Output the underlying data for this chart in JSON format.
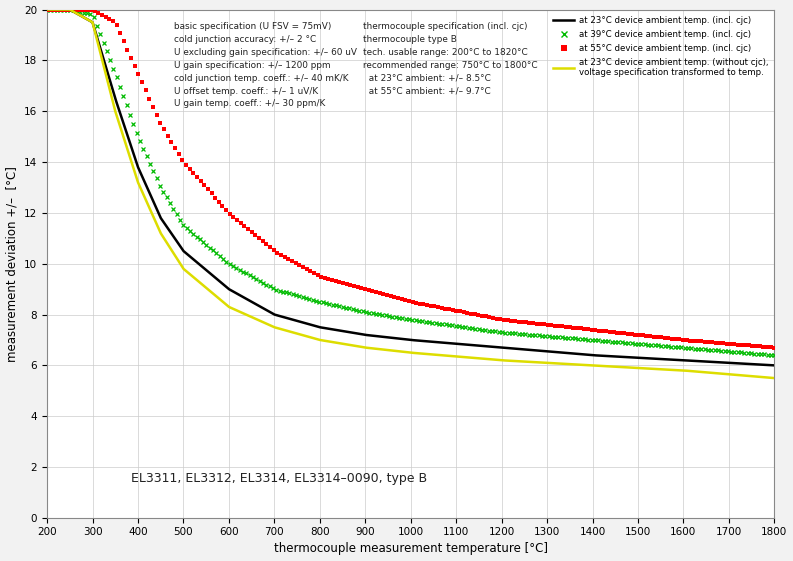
{
  "title": "",
  "xlabel": "thermocouple measurement temperature [°C]",
  "ylabel": "measurement deviation +/–  [°C]",
  "xlim": [
    200,
    1800
  ],
  "ylim": [
    0,
    20
  ],
  "xticks": [
    200,
    300,
    400,
    500,
    600,
    700,
    800,
    900,
    1000,
    1100,
    1200,
    1300,
    1400,
    1500,
    1600,
    1700,
    1800
  ],
  "yticks": [
    0,
    2,
    4,
    6,
    8,
    10,
    12,
    14,
    16,
    18,
    20
  ],
  "annotation_bottom": "EL3311, EL3312, EL3314, EL3314–0090, type B",
  "annotation_text1": "basic specification (U FSV = 75mV)\ncold junction accuracy: +/– 2 °C\nU excluding gain specification: +/– 60 uV\nU gain specification: +/– 1200 ppm\ncold junction temp. coeff.: +/– 40 mK/K\nU offset temp. coeff.: +/– 1 uV/K\nU gain temp. coeff.: +/– 30 ppm/K",
  "annotation_text2": "thermocouple specification (incl. cjc)\nthermocouple type B\ntech. usable range: 200°C to 1820°C\nrecommended range: 750°C to 1800°C\n  at 23°C ambient: +/– 8.5°C\n  at 55°C ambient: +/– 9.7°C",
  "legend_label0": "at 23°C device ambient temp. (incl. cjc)",
  "legend_label1": "at 39°C device ambient temp. (incl. cjc)",
  "legend_label2": "at 55°C device ambient temp. (incl. cjc)",
  "legend_label3a": "at 23°C device ambient temp. (without cjc),",
  "legend_label3b": "voltage specification transformed to temp.",
  "background_color": "#f2f2f2",
  "plot_bg_color": "#ffffff",
  "grid_color": "#cccccc",
  "curve_knots_23": [
    [
      200,
      20
    ],
    [
      250,
      20
    ],
    [
      300,
      19.5
    ],
    [
      350,
      16.5
    ],
    [
      400,
      13.8
    ],
    [
      450,
      11.8
    ],
    [
      500,
      10.5
    ],
    [
      600,
      9.0
    ],
    [
      700,
      8.0
    ],
    [
      800,
      7.5
    ],
    [
      900,
      7.2
    ],
    [
      1000,
      7.0
    ],
    [
      1200,
      6.7
    ],
    [
      1400,
      6.4
    ],
    [
      1600,
      6.2
    ],
    [
      1800,
      6.0
    ]
  ],
  "curve_knots_39": [
    [
      200,
      20
    ],
    [
      250,
      20
    ],
    [
      300,
      19.8
    ],
    [
      350,
      17.5
    ],
    [
      400,
      15.0
    ],
    [
      450,
      13.0
    ],
    [
      500,
      11.5
    ],
    [
      600,
      10.0
    ],
    [
      700,
      9.0
    ],
    [
      800,
      8.5
    ],
    [
      900,
      8.1
    ],
    [
      1000,
      7.8
    ],
    [
      1200,
      7.3
    ],
    [
      1400,
      7.0
    ],
    [
      1600,
      6.7
    ],
    [
      1800,
      6.4
    ]
  ],
  "curve_knots_55": [
    [
      200,
      20
    ],
    [
      250,
      20
    ],
    [
      300,
      20
    ],
    [
      350,
      19.5
    ],
    [
      400,
      17.5
    ],
    [
      450,
      15.5
    ],
    [
      500,
      14.0
    ],
    [
      600,
      12.0
    ],
    [
      700,
      10.5
    ],
    [
      800,
      9.5
    ],
    [
      900,
      9.0
    ],
    [
      1000,
      8.5
    ],
    [
      1200,
      7.8
    ],
    [
      1400,
      7.4
    ],
    [
      1600,
      7.0
    ],
    [
      1800,
      6.7
    ]
  ],
  "curve_knots_23nc": [
    [
      200,
      20
    ],
    [
      250,
      20
    ],
    [
      300,
      19.5
    ],
    [
      350,
      16.0
    ],
    [
      400,
      13.2
    ],
    [
      450,
      11.2
    ],
    [
      500,
      9.8
    ],
    [
      600,
      8.3
    ],
    [
      700,
      7.5
    ],
    [
      800,
      7.0
    ],
    [
      900,
      6.7
    ],
    [
      1000,
      6.5
    ],
    [
      1200,
      6.2
    ],
    [
      1400,
      6.0
    ],
    [
      1600,
      5.8
    ],
    [
      1800,
      5.5
    ]
  ]
}
